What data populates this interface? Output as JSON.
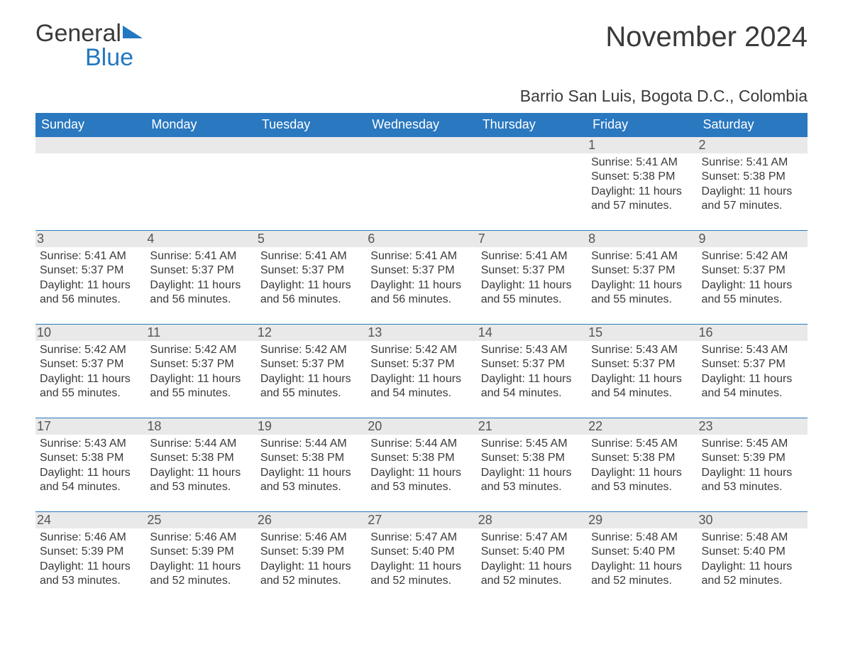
{
  "branding": {
    "word1": "General",
    "word2": "Blue",
    "brand_color": "#2278c0",
    "text_color": "#3a3a3a"
  },
  "header": {
    "title": "November 2024",
    "location": "Barrio San Luis, Bogota D.C., Colombia"
  },
  "styling": {
    "header_row_bg": "#2a78bf",
    "header_row_fg": "#ffffff",
    "daynum_bg": "#e9e9e9",
    "body_text_color": "#3a3a3a",
    "row_divider_color": "#2a78bf",
    "page_bg": "#ffffff",
    "title_fontsize": 40,
    "subtitle_fontsize": 23,
    "dayheader_fontsize": 18,
    "cell_fontsize": 16
  },
  "day_headers": [
    "Sunday",
    "Monday",
    "Tuesday",
    "Wednesday",
    "Thursday",
    "Friday",
    "Saturday"
  ],
  "labels": {
    "sunrise": "Sunrise",
    "sunset": "Sunset",
    "daylight": "Daylight"
  },
  "weeks": [
    [
      null,
      null,
      null,
      null,
      null,
      {
        "n": 1,
        "sunrise": "5:41 AM",
        "sunset": "5:38 PM",
        "daylight": "11 hours and 57 minutes."
      },
      {
        "n": 2,
        "sunrise": "5:41 AM",
        "sunset": "5:38 PM",
        "daylight": "11 hours and 57 minutes."
      }
    ],
    [
      {
        "n": 3,
        "sunrise": "5:41 AM",
        "sunset": "5:37 PM",
        "daylight": "11 hours and 56 minutes."
      },
      {
        "n": 4,
        "sunrise": "5:41 AM",
        "sunset": "5:37 PM",
        "daylight": "11 hours and 56 minutes."
      },
      {
        "n": 5,
        "sunrise": "5:41 AM",
        "sunset": "5:37 PM",
        "daylight": "11 hours and 56 minutes."
      },
      {
        "n": 6,
        "sunrise": "5:41 AM",
        "sunset": "5:37 PM",
        "daylight": "11 hours and 56 minutes."
      },
      {
        "n": 7,
        "sunrise": "5:41 AM",
        "sunset": "5:37 PM",
        "daylight": "11 hours and 55 minutes."
      },
      {
        "n": 8,
        "sunrise": "5:41 AM",
        "sunset": "5:37 PM",
        "daylight": "11 hours and 55 minutes."
      },
      {
        "n": 9,
        "sunrise": "5:42 AM",
        "sunset": "5:37 PM",
        "daylight": "11 hours and 55 minutes."
      }
    ],
    [
      {
        "n": 10,
        "sunrise": "5:42 AM",
        "sunset": "5:37 PM",
        "daylight": "11 hours and 55 minutes."
      },
      {
        "n": 11,
        "sunrise": "5:42 AM",
        "sunset": "5:37 PM",
        "daylight": "11 hours and 55 minutes."
      },
      {
        "n": 12,
        "sunrise": "5:42 AM",
        "sunset": "5:37 PM",
        "daylight": "11 hours and 55 minutes."
      },
      {
        "n": 13,
        "sunrise": "5:42 AM",
        "sunset": "5:37 PM",
        "daylight": "11 hours and 54 minutes."
      },
      {
        "n": 14,
        "sunrise": "5:43 AM",
        "sunset": "5:37 PM",
        "daylight": "11 hours and 54 minutes."
      },
      {
        "n": 15,
        "sunrise": "5:43 AM",
        "sunset": "5:37 PM",
        "daylight": "11 hours and 54 minutes."
      },
      {
        "n": 16,
        "sunrise": "5:43 AM",
        "sunset": "5:37 PM",
        "daylight": "11 hours and 54 minutes."
      }
    ],
    [
      {
        "n": 17,
        "sunrise": "5:43 AM",
        "sunset": "5:38 PM",
        "daylight": "11 hours and 54 minutes."
      },
      {
        "n": 18,
        "sunrise": "5:44 AM",
        "sunset": "5:38 PM",
        "daylight": "11 hours and 53 minutes."
      },
      {
        "n": 19,
        "sunrise": "5:44 AM",
        "sunset": "5:38 PM",
        "daylight": "11 hours and 53 minutes."
      },
      {
        "n": 20,
        "sunrise": "5:44 AM",
        "sunset": "5:38 PM",
        "daylight": "11 hours and 53 minutes."
      },
      {
        "n": 21,
        "sunrise": "5:45 AM",
        "sunset": "5:38 PM",
        "daylight": "11 hours and 53 minutes."
      },
      {
        "n": 22,
        "sunrise": "5:45 AM",
        "sunset": "5:38 PM",
        "daylight": "11 hours and 53 minutes."
      },
      {
        "n": 23,
        "sunrise": "5:45 AM",
        "sunset": "5:39 PM",
        "daylight": "11 hours and 53 minutes."
      }
    ],
    [
      {
        "n": 24,
        "sunrise": "5:46 AM",
        "sunset": "5:39 PM",
        "daylight": "11 hours and 53 minutes."
      },
      {
        "n": 25,
        "sunrise": "5:46 AM",
        "sunset": "5:39 PM",
        "daylight": "11 hours and 52 minutes."
      },
      {
        "n": 26,
        "sunrise": "5:46 AM",
        "sunset": "5:39 PM",
        "daylight": "11 hours and 52 minutes."
      },
      {
        "n": 27,
        "sunrise": "5:47 AM",
        "sunset": "5:40 PM",
        "daylight": "11 hours and 52 minutes."
      },
      {
        "n": 28,
        "sunrise": "5:47 AM",
        "sunset": "5:40 PM",
        "daylight": "11 hours and 52 minutes."
      },
      {
        "n": 29,
        "sunrise": "5:48 AM",
        "sunset": "5:40 PM",
        "daylight": "11 hours and 52 minutes."
      },
      {
        "n": 30,
        "sunrise": "5:48 AM",
        "sunset": "5:40 PM",
        "daylight": "11 hours and 52 minutes."
      }
    ]
  ]
}
